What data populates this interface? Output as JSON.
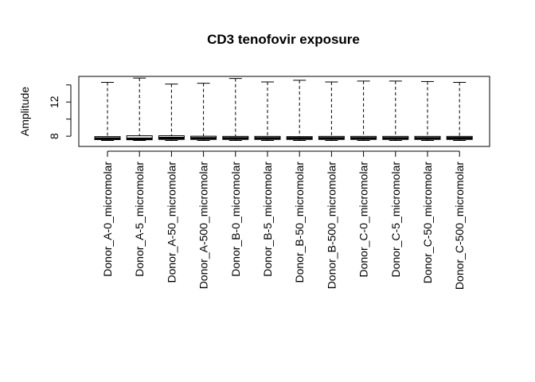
{
  "chart_data": {
    "type": "boxplot",
    "title": "CD3 tenofovir exposure",
    "xlabel": "",
    "ylabel": "Amplitude",
    "ylim": [
      6.8,
      15.0
    ],
    "yticks": [
      8,
      12
    ],
    "grid": false,
    "categories": [
      "Donor_A-0_micromolar",
      "Donor_A-5_micromolar",
      "Donor_A-50_micromolar",
      "Donor_A-500_micromolar",
      "Donor_B-0_micromolar",
      "Donor_B-5_micromolar",
      "Donor_B-50_micromolar",
      "Donor_B-500_micromolar",
      "Donor_C-0_micromolar",
      "Donor_C-5_micromolar",
      "Donor_C-50_micromolar",
      "Donor_C-500_micromolar"
    ],
    "series": [
      {
        "boxes": [
          {
            "min": 7.5,
            "q1": 7.6,
            "median": 7.72,
            "q3": 7.95,
            "max": 14.3
          },
          {
            "min": 7.5,
            "q1": 7.58,
            "median": 7.7,
            "q3": 8.05,
            "max": 14.8
          },
          {
            "min": 7.5,
            "q1": 7.62,
            "median": 7.78,
            "q3": 8.05,
            "max": 14.1
          },
          {
            "min": 7.5,
            "q1": 7.62,
            "median": 7.75,
            "q3": 8.0,
            "max": 14.2
          },
          {
            "min": 7.5,
            "q1": 7.62,
            "median": 7.75,
            "q3": 7.98,
            "max": 14.75
          },
          {
            "min": 7.5,
            "q1": 7.62,
            "median": 7.75,
            "q3": 7.98,
            "max": 14.35
          },
          {
            "min": 7.5,
            "q1": 7.62,
            "median": 7.75,
            "q3": 7.95,
            "max": 14.55
          },
          {
            "min": 7.5,
            "q1": 7.62,
            "median": 7.75,
            "q3": 7.98,
            "max": 14.35
          },
          {
            "min": 7.5,
            "q1": 7.62,
            "median": 7.75,
            "q3": 7.98,
            "max": 14.45
          },
          {
            "min": 7.5,
            "q1": 7.62,
            "median": 7.75,
            "q3": 7.98,
            "max": 14.45
          },
          {
            "min": 7.5,
            "q1": 7.62,
            "median": 7.75,
            "q3": 7.98,
            "max": 14.4
          },
          {
            "min": 7.5,
            "q1": 7.62,
            "median": 7.77,
            "q3": 7.98,
            "max": 14.3
          }
        ]
      }
    ]
  }
}
